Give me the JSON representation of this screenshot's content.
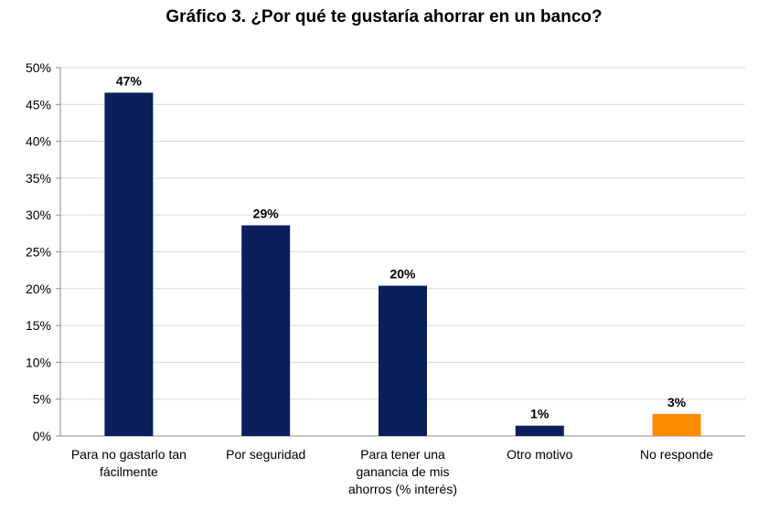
{
  "chart_data": {
    "type": "bar",
    "title": "Gráfico 3. ¿Por qué te gustaría ahorrar en un banco?",
    "categories": [
      "Para no gastarlo tan fácilmente",
      "Por seguridad",
      "Para tener una ganancia de mis ahorros (% interés)",
      "Otro motivo",
      "No responde"
    ],
    "category_lines": [
      [
        "Para no gastarlo tan",
        "fácilmente"
      ],
      [
        "Por seguridad"
      ],
      [
        "Para tener una",
        "ganancia de mis",
        "ahorros (% interés)"
      ],
      [
        "Otro motivo"
      ],
      [
        "No responde"
      ]
    ],
    "values": [
      46.6,
      28.6,
      20.4,
      1.4,
      3.0
    ],
    "data_labels": [
      "47%",
      "29%",
      "20%",
      "1%",
      "3%"
    ],
    "bar_colors": [
      "#0a1f5c",
      "#0a1f5c",
      "#0a1f5c",
      "#0a1f5c",
      "#ff8c00"
    ],
    "ylim": [
      0,
      50
    ],
    "yticks": [
      0,
      5,
      10,
      15,
      20,
      25,
      30,
      35,
      40,
      45,
      50
    ],
    "ytick_labels": [
      "0%",
      "5%",
      "10%",
      "15%",
      "20%",
      "25%",
      "30%",
      "35%",
      "40%",
      "45%",
      "50%"
    ],
    "xlabel": "",
    "ylabel": "",
    "grid": true,
    "legend": "none"
  }
}
